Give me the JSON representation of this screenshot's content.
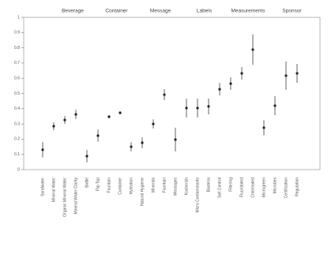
{
  "chart_data": {
    "type": "errorbar",
    "groups": [
      "Beverage",
      "Container",
      "Message",
      "Labels",
      "Measurements",
      "Sponsor"
    ],
    "categories": [
      "Sandwater",
      "Mineral Water",
      "Organic Mineral Water",
      "Mineral Water Clarity",
      "Bottle",
      "Flip Top",
      "Fountain",
      "Container",
      "Hydration",
      "Natural Hygiene",
      "Minerals",
      "Fountain",
      "Messages",
      "Kosherish",
      "Micro Contaminants",
      "Bacteria",
      "Sell Control",
      "Filtering",
      "Fluoridated",
      "Chlorinated",
      "Microgreen",
      "Microbes",
      "Certification",
      "Regulation"
    ],
    "values": [
      0.13,
      0.285,
      0.326,
      0.363,
      0.088,
      0.223,
      0.347,
      0.373,
      0.15,
      0.176,
      0.3,
      0.492,
      0.197,
      0.404,
      0.404,
      0.415,
      0.528,
      0.565,
      0.632,
      0.788,
      0.275,
      0.42,
      0.617,
      0.632
    ],
    "errors": [
      0.05,
      0.026,
      0.026,
      0.03,
      0.04,
      0.04,
      0.01,
      0.01,
      0.03,
      0.036,
      0.03,
      0.036,
      0.078,
      0.062,
      0.062,
      0.052,
      0.041,
      0.041,
      0.041,
      0.1,
      0.05,
      0.062,
      0.093,
      0.062
    ],
    "color": "#222222",
    "ylim": [
      0,
      1
    ],
    "yticks": [
      0,
      0.1,
      0.2,
      0.3,
      0.4,
      0.5,
      0.6,
      0.7,
      0.8,
      0.9,
      1
    ]
  }
}
